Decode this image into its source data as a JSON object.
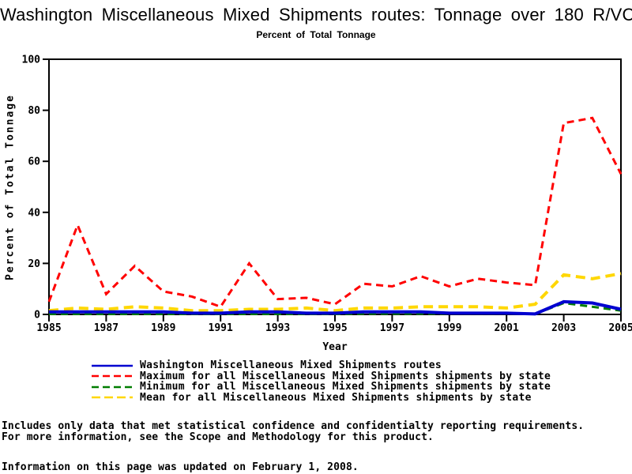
{
  "chart_data": {
    "type": "line",
    "title": "Washington Miscellaneous Mixed Shipments routes: Tonnage over 180 R/VC",
    "subtitle": "Percent of Total Tonnage",
    "xlabel": "Year",
    "ylabel": "Percent of Total Tonnage",
    "xlim": [
      1985,
      2005
    ],
    "ylim": [
      0,
      100
    ],
    "grid": false,
    "legend_position": "bottom",
    "y_ticks": [
      0,
      20,
      40,
      60,
      80,
      100
    ],
    "x_tick_labels": [
      "1985",
      "1987",
      "1989",
      "1991",
      "1993",
      "1995",
      "1997",
      "1999",
      "2001",
      "2003",
      "2005"
    ],
    "x": [
      1985,
      1986,
      1987,
      1988,
      1989,
      1990,
      1991,
      1992,
      1993,
      1994,
      1995,
      1996,
      1997,
      1998,
      1999,
      2000,
      2001,
      2002,
      2003,
      2004,
      2005
    ],
    "series": [
      {
        "name": "Washington Miscellaneous Mixed Shipments routes",
        "color": "#0000d0",
        "style": "solid",
        "width": 4,
        "values": [
          1,
          1,
          1,
          1,
          1,
          0.5,
          0.5,
          1,
          1,
          0.5,
          0.5,
          1,
          1,
          1,
          0.5,
          0.5,
          0.5,
          0.2,
          5,
          4.5,
          2
        ]
      },
      {
        "name": "Maximum for all Miscellaneous Mixed Shipments shipments by state",
        "color": "#ff0000",
        "style": "dashed",
        "width": 3,
        "values": [
          5,
          35,
          8,
          19,
          9,
          7,
          3,
          20,
          6,
          6.5,
          4,
          12,
          11,
          15,
          11,
          14,
          12.5,
          11.5,
          75,
          77,
          55
        ]
      },
      {
        "name": "Minimum for all Miscellaneous Mixed Shipments shipments by state",
        "color": "#007d00",
        "style": "dashed",
        "width": 3,
        "values": [
          0.2,
          0.2,
          0.2,
          0.2,
          0.2,
          0.2,
          0.2,
          0.2,
          0.2,
          0.2,
          0.2,
          0.3,
          0.3,
          0.3,
          0.3,
          0.3,
          0.3,
          0.2,
          4.5,
          3,
          1.5
        ]
      },
      {
        "name": "Mean for all Miscellaneous Mixed Shipments shipments by state",
        "color": "#ffd700",
        "style": "long-dashed",
        "width": 4,
        "values": [
          1.5,
          2.5,
          2,
          3,
          2.5,
          1.5,
          1.5,
          2,
          2,
          2.5,
          1.5,
          2.5,
          2.5,
          3,
          3,
          3,
          2.5,
          4,
          15.5,
          14,
          16
        ]
      }
    ]
  },
  "footer": {
    "line1": "Includes only data that met statistical confidence and confidentialty reporting requirements.",
    "line2": "For more information, see the Scope and Methodology for this product.",
    "updated": "Information on this page was updated on February 1, 2008."
  }
}
